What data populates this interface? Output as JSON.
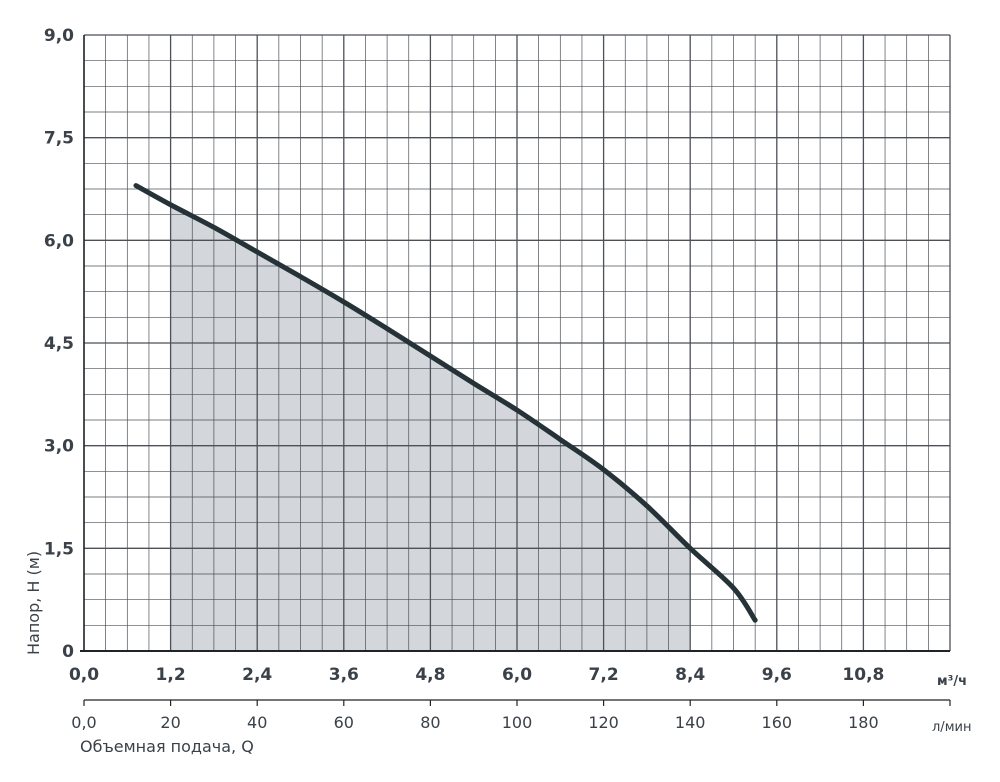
{
  "chart_data": {
    "type": "line",
    "ylabel": "Напор, H (м)",
    "xlabel": "Объемная подача, Q",
    "x_unit_primary": "м³/ч",
    "x_unit_secondary": "л/мин",
    "xlim": [
      0,
      12
    ],
    "ylim": [
      0,
      9
    ],
    "x_secondary_lim": [
      0,
      200
    ],
    "y_ticks": [
      "0",
      "1,5",
      "3,0",
      "4,5",
      "6,0",
      "7,5",
      "9,0"
    ],
    "y_tick_values": [
      0,
      1.5,
      3,
      4.5,
      6,
      7.5,
      9
    ],
    "x_ticks_primary": [
      "0,0",
      "1,2",
      "2,4",
      "3,6",
      "4,8",
      "6,0",
      "7,2",
      "8,4",
      "9,6",
      "10,8"
    ],
    "x_ticks_primary_values": [
      0,
      1.2,
      2.4,
      3.6,
      4.8,
      6.0,
      7.2,
      8.4,
      9.6,
      10.8
    ],
    "x_ticks_secondary": [
      "0,0",
      "20",
      "40",
      "60",
      "80",
      "100",
      "120",
      "140",
      "160",
      "180"
    ],
    "x_ticks_secondary_values": [
      0,
      20,
      40,
      60,
      80,
      100,
      120,
      140,
      160,
      180
    ],
    "grid": true,
    "grid_minor_x_step": 0.3,
    "grid_minor_y_step": 0.375,
    "operating_range": [
      1.2,
      8.4
    ],
    "series": [
      {
        "x": [
          0.72,
          1.2,
          1.8,
          2.4,
          3.0,
          3.6,
          4.2,
          4.8,
          5.4,
          6.0,
          6.6,
          7.2,
          7.8,
          8.4,
          9.0,
          9.3
        ],
        "y": [
          6.8,
          6.52,
          6.19,
          5.83,
          5.47,
          5.1,
          4.71,
          4.31,
          3.91,
          3.52,
          3.09,
          2.65,
          2.12,
          1.5,
          0.92,
          0.45
        ]
      }
    ],
    "colors": {
      "curve": "#253238",
      "fill": "#d3d7db",
      "grid": "#4b5157",
      "axis": "#1f2428",
      "text": "#3a4148"
    }
  }
}
